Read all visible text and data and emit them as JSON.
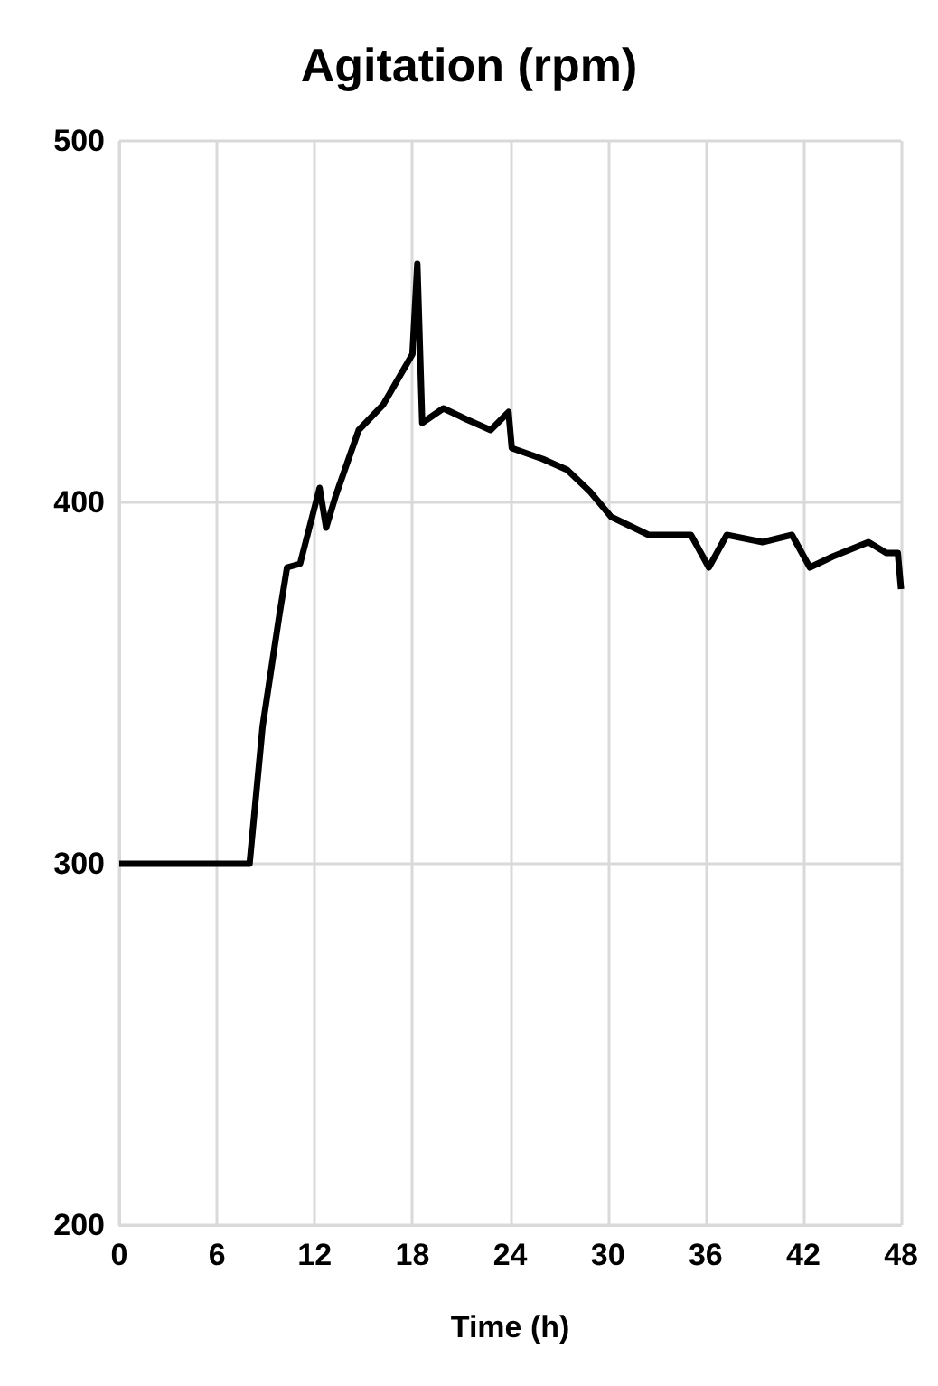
{
  "chart_data": {
    "type": "line",
    "title": "Agitation (rpm)",
    "xlabel": "Time (h)",
    "xlim": [
      0,
      48
    ],
    "xticks": [
      0,
      6,
      12,
      18,
      24,
      30,
      36,
      42,
      48
    ],
    "ylim": [
      200,
      500
    ],
    "yticks": [
      200,
      300,
      400,
      500
    ],
    "grid": true,
    "series": [
      {
        "color": "#000000",
        "x": [
          0,
          2,
          4,
          6,
          8,
          8.8,
          9.8,
          10.3,
          11.1,
          12.3,
          12.7,
          13.3,
          14.7,
          16.2,
          18.0,
          18.3,
          18.6,
          19.9,
          21.3,
          22.8,
          23.9,
          24.1,
          26,
          27.5,
          28.9,
          30.2,
          32.5,
          35.1,
          36.2,
          37.3,
          39.5,
          41.3,
          42.4,
          43.8,
          46,
          47.1,
          47.8,
          48
        ],
        "values": [
          300,
          300,
          300,
          300,
          300,
          338,
          368,
          382,
          383,
          404,
          393,
          402,
          420,
          427,
          441,
          466,
          422,
          426,
          423,
          420,
          425,
          415,
          412,
          409,
          403,
          396,
          391,
          391,
          382,
          391,
          389,
          391,
          382,
          385,
          389,
          386,
          386,
          376
        ]
      }
    ]
  }
}
